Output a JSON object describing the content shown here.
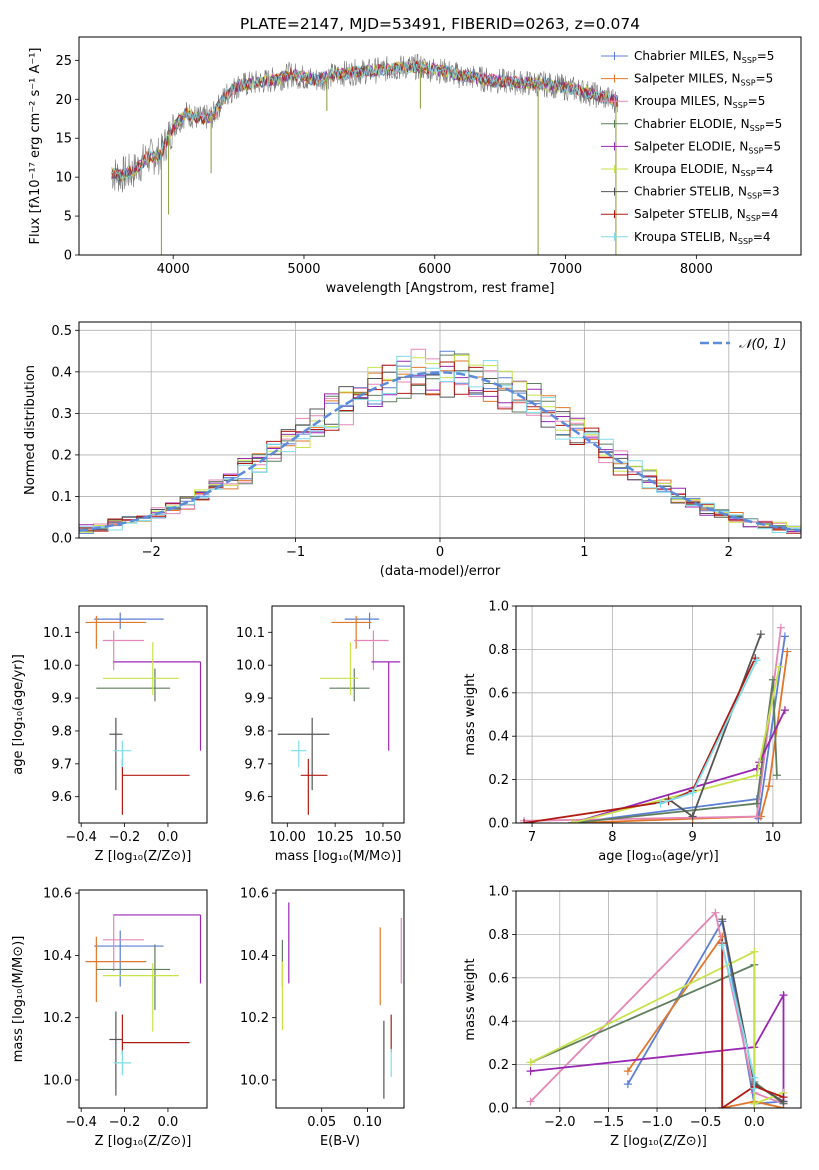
{
  "colors": {
    "Chabrier MILES": "#5b7fd4",
    "Salpeter MILES": "#e2772a",
    "Kroupa MILES": "#e586b6",
    "Chabrier ELODIE": "#5f7e5f",
    "Salpeter ELODIE": "#9a27b4",
    "Kroupa ELODIE": "#c8e349",
    "Chabrier STELIB": "#555555",
    "Salpeter STELIB": "#b01a12",
    "Kroupa STELIB": "#7fdcea",
    "normal": "#5b8bdb"
  },
  "chart_data": [
    {
      "id": "spectrum",
      "type": "line",
      "title": "PLATE=2147, MJD=53491, FIBERID=0263, z=0.074",
      "xlabel": "wavelength [Angstrom, rest frame]",
      "ylabel": "Flux [fλ10⁻¹⁷ erg cm⁻² s⁻¹ A⁻¹]",
      "xlim": [
        3280,
        8800
      ],
      "ylim": [
        0,
        28
      ],
      "xticks": [
        4000,
        5000,
        6000,
        7000,
        8000
      ],
      "yticks": [
        0,
        5,
        10,
        15,
        20,
        25
      ],
      "legend": {
        "placement": "top-right",
        "labels": [
          "Chabrier MILES, N",
          "Salpeter MILES, N",
          "Kroupa MILES, N",
          "Chabrier ELODIE, N",
          "Salpeter ELODIE, N",
          "Kroupa ELODIE, N",
          "Chabrier STELIB, N",
          "Salpeter STELIB, N",
          "Kroupa STELIB, N"
        ],
        "sub": "SSP",
        "values": [
          "=5",
          "=5",
          "=5",
          "=5",
          "=5",
          "=4",
          "=3",
          "=4",
          "=4"
        ]
      },
      "continuum": {
        "x": [
          3530,
          3600,
          3700,
          3800,
          3900,
          4000,
          4100,
          4200,
          4300,
          4400,
          4500,
          4600,
          4700,
          4800,
          4900,
          5000,
          5100,
          5200,
          5300,
          5400,
          5500,
          5600,
          5700,
          5800,
          5900,
          6000,
          6100,
          6200,
          6300,
          6400,
          6500,
          6600,
          6700,
          6800,
          6900,
          7000,
          7100,
          7200,
          7300,
          7400
        ],
        "y": [
          10.5,
          10.2,
          10.8,
          12.5,
          12.8,
          16.5,
          18.2,
          17.5,
          17.8,
          20.5,
          21.8,
          22.0,
          22.3,
          22.6,
          23.2,
          22.8,
          22.5,
          23.0,
          23.3,
          23.5,
          23.6,
          23.8,
          24.0,
          24.2,
          24.1,
          23.8,
          23.5,
          23.0,
          22.8,
          22.5,
          22.3,
          22.2,
          22.1,
          22.0,
          21.8,
          21.5,
          21.2,
          20.7,
          20.2,
          19.8
        ]
      },
      "dips": [
        {
          "x": 3910,
          "y": 0
        },
        {
          "x": 3965,
          "y": 5.2
        },
        {
          "x": 4290,
          "y": 10.5
        },
        {
          "x": 5175,
          "y": 18.5
        },
        {
          "x": 5890,
          "y": 18.8
        },
        {
          "x": 6790,
          "y": 0
        },
        {
          "x": 7385,
          "y": 0
        }
      ]
    },
    {
      "id": "residuals",
      "type": "step",
      "xlabel": "(data-model)/error",
      "ylabel": "Normed distribution",
      "xlim": [
        -2.5,
        2.5
      ],
      "ylim": [
        0,
        0.52
      ],
      "xticks": [
        -2,
        -1,
        0,
        1,
        2
      ],
      "yticks": [
        0.0,
        0.1,
        0.2,
        0.3,
        0.4,
        0.5
      ],
      "grid": true,
      "legend": {
        "placement": "top-right",
        "label": "𝒩(0, 1)"
      },
      "bin_width": 0.1
    },
    {
      "id": "age_vs_Z",
      "type": "errorbar",
      "xlabel": "Z [log₁₀(Z/Z⊙)]",
      "ylabel": "age  [log₁₀(age/yr)]",
      "xlim": [
        -0.41,
        0.18
      ],
      "ylim": [
        9.52,
        10.18
      ],
      "xticks": [
        -0.4,
        -0.2,
        0.0
      ],
      "yticks": [
        9.6,
        9.7,
        9.8,
        9.9,
        10.0,
        10.1
      ],
      "points": [
        {
          "series": "Chabrier MILES",
          "x": -0.22,
          "y": 10.14,
          "xl": 0.12,
          "xr": 0.2,
          "yd": 0.03,
          "yu": 0.02
        },
        {
          "series": "Salpeter MILES",
          "x": -0.33,
          "y": 10.13,
          "xl": 0.05,
          "xr": 0.23,
          "yd": 0.08,
          "yu": 0.02
        },
        {
          "series": "Kroupa MILES",
          "x": -0.25,
          "y": 10.075,
          "xl": 0.05,
          "xr": 0.14,
          "yd": 0.09,
          "yu": 0.03
        },
        {
          "series": "Chabrier ELODIE",
          "x": -0.06,
          "y": 9.93,
          "xl": 0.27,
          "xr": 0.07,
          "yd": 0.04,
          "yu": 0.06
        },
        {
          "series": "Salpeter ELODIE",
          "x": 0.15,
          "y": 10.01,
          "xl": 0.4,
          "xr": 0.0,
          "yd": 0.27,
          "yu": 0.0
        },
        {
          "series": "Kroupa ELODIE",
          "x": -0.07,
          "y": 9.96,
          "xl": 0.23,
          "xr": 0.12,
          "yd": 0.05,
          "yu": 0.11
        },
        {
          "series": "Chabrier STELIB",
          "x": -0.24,
          "y": 9.79,
          "xl": 0.03,
          "xr": 0.03,
          "yd": 0.17,
          "yu": 0.05
        },
        {
          "series": "Salpeter STELIB",
          "x": -0.21,
          "y": 9.665,
          "xl": 0.0,
          "xr": 0.31,
          "yd": 0.12,
          "yu": 0.05
        },
        {
          "series": "Kroupa STELIB",
          "x": -0.21,
          "y": 9.74,
          "xl": 0.04,
          "xr": 0.04,
          "yd": 0.05,
          "yu": 0.03
        }
      ]
    },
    {
      "id": "age_vs_mass",
      "type": "errorbar",
      "xlabel": "mass [log₁₀(M/M⊙)]",
      "ylabel": "",
      "xlim": [
        9.92,
        10.61
      ],
      "ylim": [
        9.52,
        10.18
      ],
      "xticks": [
        10.0,
        10.25,
        10.5
      ],
      "xticklabels": [
        "10.00",
        "10.25",
        "10.50"
      ],
      "yticks": [
        9.6,
        9.7,
        9.8,
        9.9,
        10.0,
        10.1
      ],
      "points": [
        {
          "series": "Chabrier MILES",
          "x": 10.43,
          "y": 10.14,
          "xl": 0.13,
          "xr": 0.05,
          "yd": 0.03,
          "yu": 0.02
        },
        {
          "series": "Salpeter MILES",
          "x": 10.36,
          "y": 10.13,
          "xl": 0.13,
          "xr": 0.08,
          "yd": 0.08,
          "yu": 0.02
        },
        {
          "series": "Kroupa MILES",
          "x": 10.45,
          "y": 10.075,
          "xl": 0.1,
          "xr": 0.08,
          "yd": 0.09,
          "yu": 0.03
        },
        {
          "series": "Chabrier ELODIE",
          "x": 10.35,
          "y": 9.93,
          "xl": 0.13,
          "xr": 0.08,
          "yd": 0.04,
          "yu": 0.06
        },
        {
          "series": "Salpeter ELODIE",
          "x": 10.53,
          "y": 10.01,
          "xl": 0.09,
          "xr": 0.06,
          "yd": 0.27,
          "yu": 0.0
        },
        {
          "series": "Kroupa ELODIE",
          "x": 10.33,
          "y": 9.96,
          "xl": 0.16,
          "xr": 0.04,
          "yd": 0.05,
          "yu": 0.11
        },
        {
          "series": "Chabrier STELIB",
          "x": 10.13,
          "y": 9.79,
          "xl": 0.18,
          "xr": 0.09,
          "yd": 0.17,
          "yu": 0.05
        },
        {
          "series": "Salpeter STELIB",
          "x": 10.11,
          "y": 9.665,
          "xl": 0.04,
          "xr": 0.1,
          "yd": 0.12,
          "yu": 0.05
        },
        {
          "series": "Kroupa STELIB",
          "x": 10.06,
          "y": 9.74,
          "xl": 0.04,
          "xr": 0.04,
          "yd": 0.05,
          "yu": 0.03
        }
      ]
    },
    {
      "id": "mass_weight_vs_age",
      "type": "line",
      "xlabel": "age  [log₁₀(age/yr)]",
      "ylabel": "mass weight",
      "xlim": [
        6.8,
        10.35
      ],
      "ylim": [
        0,
        1.0
      ],
      "xticks": [
        7,
        8,
        9,
        10
      ],
      "yticks": [
        0.0,
        0.2,
        0.4,
        0.6,
        0.8,
        1.0
      ],
      "grid": true,
      "series": [
        {
          "name": "Chabrier MILES",
          "x": [
            7.5,
            9.8,
            9.82,
            10.15
          ],
          "y": [
            0.0,
            0.11,
            0.02,
            0.86
          ]
        },
        {
          "name": "Salpeter MILES",
          "x": [
            7.5,
            9.0,
            9.85,
            9.95,
            10.18
          ],
          "y": [
            0.0,
            0.02,
            0.03,
            0.17,
            0.79
          ]
        },
        {
          "name": "Kroupa MILES",
          "x": [
            6.9,
            9.8,
            10.1
          ],
          "y": [
            0.01,
            0.03,
            0.9
          ]
        },
        {
          "name": "Chabrier ELODIE",
          "x": [
            7.5,
            9.8,
            10.0,
            10.05
          ],
          "y": [
            0.0,
            0.09,
            0.66,
            0.22
          ]
        },
        {
          "name": "Salpeter ELODIE",
          "x": [
            7.5,
            9.8,
            9.83,
            10.15
          ],
          "y": [
            0.0,
            0.25,
            0.28,
            0.52
          ]
        },
        {
          "name": "Kroupa ELODIE",
          "x": [
            7.5,
            9.8,
            10.08
          ],
          "y": [
            0.0,
            0.22,
            0.72
          ]
        },
        {
          "name": "Chabrier STELIB",
          "x": [
            8.7,
            9.0,
            9.85
          ],
          "y": [
            0.11,
            0.03,
            0.87
          ]
        },
        {
          "name": "Salpeter STELIB",
          "x": [
            6.9,
            8.7,
            9.0,
            9.78
          ],
          "y": [
            0.0,
            0.1,
            0.15,
            0.76
          ]
        },
        {
          "name": "Kroupa STELIB",
          "x": [
            8.6,
            9.0,
            9.8
          ],
          "y": [
            0.09,
            0.14,
            0.75
          ]
        }
      ]
    },
    {
      "id": "mass_vs_Z",
      "type": "errorbar",
      "xlabel": "Z [log₁₀(Z/Z⊙)]",
      "ylabel": "mass [log₁₀(M/M⊙)]",
      "xlim": [
        -0.41,
        0.18
      ],
      "ylim": [
        9.91,
        10.61
      ],
      "xticks": [
        -0.4,
        -0.2,
        0.0
      ],
      "yticks": [
        10.0,
        10.2,
        10.4,
        10.6
      ],
      "points": [
        {
          "series": "Chabrier MILES",
          "x": -0.22,
          "y": 10.43,
          "xl": 0.12,
          "xr": 0.2,
          "yd": 0.13,
          "yu": 0.05
        },
        {
          "series": "Salpeter MILES",
          "x": -0.33,
          "y": 10.38,
          "xl": 0.05,
          "xr": 0.23,
          "yd": 0.13,
          "yu": 0.08
        },
        {
          "series": "Kroupa MILES",
          "x": -0.25,
          "y": 10.45,
          "xl": 0.05,
          "xr": 0.14,
          "yd": 0.1,
          "yu": 0.08
        },
        {
          "series": "Chabrier ELODIE",
          "x": -0.06,
          "y": 10.355,
          "xl": 0.27,
          "xr": 0.07,
          "yd": 0.13,
          "yu": 0.08
        },
        {
          "series": "Salpeter ELODIE",
          "x": 0.15,
          "y": 10.53,
          "xl": 0.4,
          "xr": 0.0,
          "yd": 0.22,
          "yu": 0.0
        },
        {
          "series": "Kroupa ELODIE",
          "x": -0.07,
          "y": 10.335,
          "xl": 0.23,
          "xr": 0.12,
          "yd": 0.18,
          "yu": 0.04
        },
        {
          "series": "Chabrier STELIB",
          "x": -0.24,
          "y": 10.13,
          "xl": 0.03,
          "xr": 0.03,
          "yd": 0.18,
          "yu": 0.09
        },
        {
          "series": "Salpeter STELIB",
          "x": -0.21,
          "y": 10.12,
          "xl": 0.0,
          "xr": 0.31,
          "yd": 0.04,
          "yu": 0.09
        },
        {
          "series": "Kroupa STELIB",
          "x": -0.21,
          "y": 10.055,
          "xl": 0.04,
          "xr": 0.04,
          "yd": 0.04,
          "yu": 0.04
        }
      ]
    },
    {
      "id": "mass_vs_ebv",
      "type": "errorbar",
      "xlabel": "E(B-V)",
      "ylabel": "",
      "xlim": [
        0.0,
        0.14
      ],
      "ylim": [
        9.91,
        10.61
      ],
      "xticks": [
        0.05,
        0.1
      ],
      "xticklabels": [
        "0.05",
        "0.10"
      ],
      "yticks": [
        10.0,
        10.2,
        10.4,
        10.6
      ],
      "points": [
        {
          "series": "Chabrier ELODIE",
          "x": 0.007,
          "y": 10.4,
          "yd": 0.1,
          "yu": 0.05
        },
        {
          "series": "Kroupa ELODIE",
          "x": 0.007,
          "y": 10.33,
          "yd": 0.17,
          "yu": 0.05
        },
        {
          "series": "Salpeter ELODIE",
          "x": 0.014,
          "y": 10.46,
          "yd": 0.15,
          "yu": 0.11
        },
        {
          "series": "Salpeter MILES",
          "x": 0.114,
          "y": 10.38,
          "yd": 0.14,
          "yu": 0.11
        },
        {
          "series": "Chabrier STELIB",
          "x": 0.118,
          "y": 10.1,
          "yd": 0.16,
          "yu": 0.09
        },
        {
          "series": "Salpeter STELIB",
          "x": 0.126,
          "y": 10.15,
          "yd": 0.06,
          "yu": 0.06
        },
        {
          "series": "Kroupa STELIB",
          "x": 0.126,
          "y": 10.06,
          "yd": 0.05,
          "yu": 0.04
        },
        {
          "series": "Kroupa MILES",
          "x": 0.137,
          "y": 10.43,
          "yd": 0.12,
          "yu": 0.09
        }
      ]
    },
    {
      "id": "mass_weight_vs_Z",
      "type": "line",
      "xlabel": "Z [log₁₀(Z/Z⊙)]",
      "ylabel": "mass weight",
      "xlim": [
        -2.45,
        0.48
      ],
      "ylim": [
        0,
        1.0
      ],
      "xticks": [
        -2.0,
        -1.5,
        -1.0,
        -0.5,
        0.0
      ],
      "grid": true,
      "yticks": [
        0.0,
        0.2,
        0.4,
        0.6,
        0.8,
        1.0
      ],
      "series": [
        {
          "name": "Chabrier MILES",
          "x": [
            -1.3,
            -0.33,
            0.0,
            0.3
          ],
          "y": [
            0.11,
            0.86,
            0.02,
            0.03
          ]
        },
        {
          "name": "Salpeter MILES",
          "x": [
            -1.3,
            -0.33,
            -0.33,
            0.0,
            0.3
          ],
          "y": [
            0.17,
            0.79,
            0.0,
            0.03,
            0.0
          ]
        },
        {
          "name": "Kroupa MILES",
          "x": [
            -2.3,
            -0.4,
            0.0,
            0.3
          ],
          "y": [
            0.03,
            0.9,
            0.07,
            0.02
          ]
        },
        {
          "name": "Chabrier ELODIE",
          "x": [
            -2.3,
            0.0,
            0.0,
            0.3
          ],
          "y": [
            0.21,
            0.66,
            0.12,
            0.02
          ]
        },
        {
          "name": "Salpeter ELODIE",
          "x": [
            -2.3,
            0.0,
            0.3,
            0.3
          ],
          "y": [
            0.17,
            0.28,
            0.52,
            0.03
          ]
        },
        {
          "name": "Kroupa ELODIE",
          "x": [
            -2.3,
            0.0,
            0.0,
            0.3
          ],
          "y": [
            0.21,
            0.72,
            0.02,
            0.07
          ]
        },
        {
          "name": "Chabrier STELIB",
          "x": [
            -0.33,
            0.0,
            0.3
          ],
          "y": [
            0.87,
            0.11,
            0.03
          ]
        },
        {
          "name": "Salpeter STELIB",
          "x": [
            -0.33,
            -0.33,
            0.0,
            0.3
          ],
          "y": [
            0.76,
            0.0,
            0.1,
            0.05
          ]
        },
        {
          "name": "Kroupa STELIB",
          "x": [
            -0.33,
            0.0,
            0.0
          ],
          "y": [
            0.75,
            0.14,
            0.09
          ]
        }
      ]
    }
  ]
}
